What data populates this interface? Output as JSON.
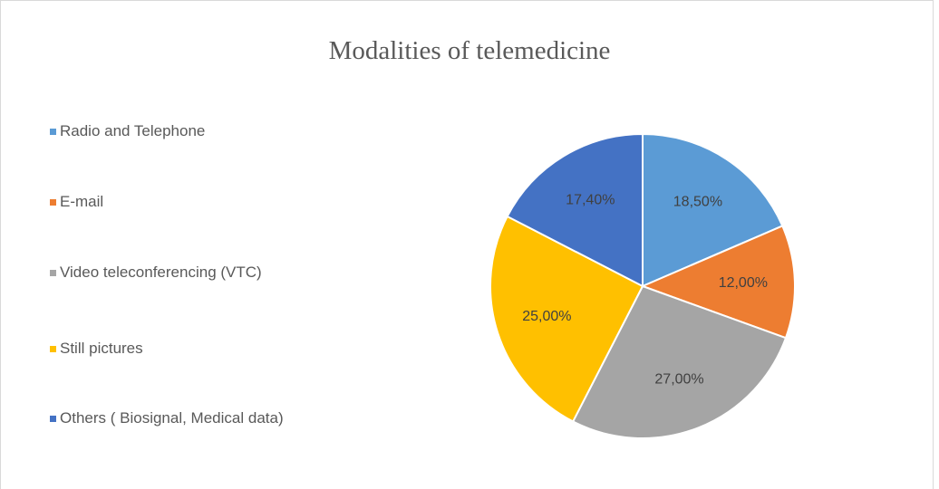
{
  "chart_data": {
    "type": "pie",
    "title": "Modalities of  telemedicine",
    "categories": [
      "Radio and Telephone",
      "E-mail",
      "Video teleconferencing (VTC)",
      "Still pictures",
      "Others ( Biosignal, Medical data)"
    ],
    "values": [
      18.5,
      12,
      27,
      25,
      17.4
    ],
    "value_labels": [
      "18,50%",
      "12,00%",
      "27,00%",
      "25,00%",
      "17,40%"
    ],
    "colors": [
      "#5b9bd5",
      "#ed7d31",
      "#a5a5a5",
      "#ffc000",
      "#4472c4"
    ],
    "legend": "left"
  }
}
